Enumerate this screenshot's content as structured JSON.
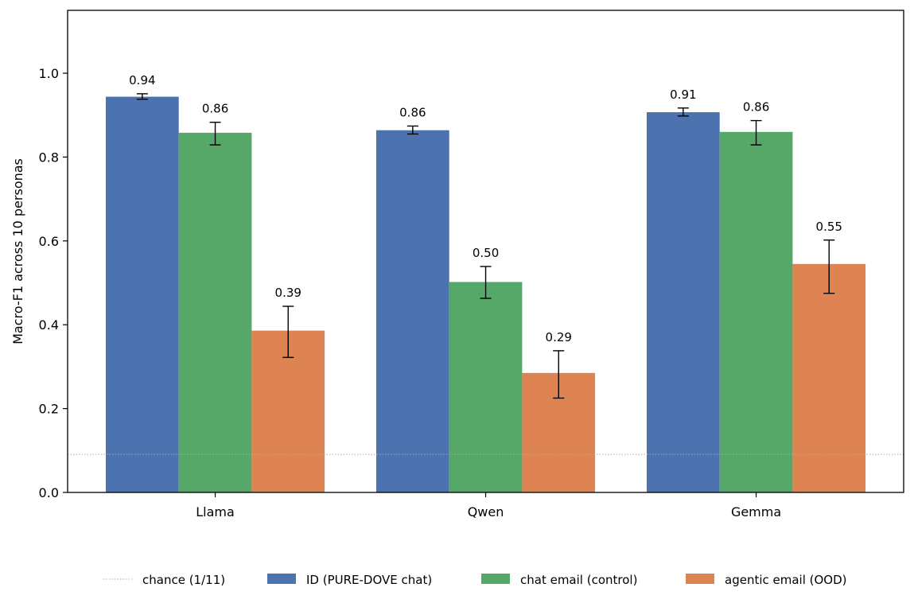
{
  "chart_data": {
    "type": "bar",
    "title": "",
    "xlabel": "",
    "ylabel": "Macro-F1 across 10 personas",
    "ylim": [
      0,
      1.15
    ],
    "yticks": [
      0.0,
      0.2,
      0.4,
      0.6,
      0.8,
      1.0
    ],
    "ytick_labels": [
      "0.0",
      "0.2",
      "0.4",
      "0.6",
      "0.8",
      "1.0"
    ],
    "categories": [
      "Llama",
      "Qwen",
      "Gemma"
    ],
    "series": [
      {
        "name": "ID (PURE-DOVE chat)",
        "color": "#4c72b0",
        "values": [
          0.944,
          0.864,
          0.907
        ],
        "err_low": [
          0.938,
          0.855,
          0.898
        ],
        "err_high": [
          0.951,
          0.874,
          0.917
        ],
        "labels": [
          "0.94",
          "0.86",
          "0.91"
        ]
      },
      {
        "name": "chat email (control)",
        "color": "#55a868",
        "values": [
          0.858,
          0.502,
          0.86
        ],
        "err_low": [
          0.829,
          0.463,
          0.829
        ],
        "err_high": [
          0.883,
          0.539,
          0.887
        ],
        "labels": [
          "0.86",
          "0.50",
          "0.86"
        ]
      },
      {
        "name": "agentic email (OOD)",
        "color": "#dd8452",
        "values": [
          0.386,
          0.285,
          0.545
        ],
        "err_low": [
          0.322,
          0.225,
          0.475
        ],
        "err_high": [
          0.444,
          0.338,
          0.602
        ],
        "labels": [
          "0.39",
          "0.29",
          "0.55"
        ]
      }
    ],
    "reference_line": {
      "name": "chance (1/11)",
      "value": 0.0909,
      "color": "#aaaaaa"
    },
    "legend_position": "bottom-center",
    "grid": false
  }
}
